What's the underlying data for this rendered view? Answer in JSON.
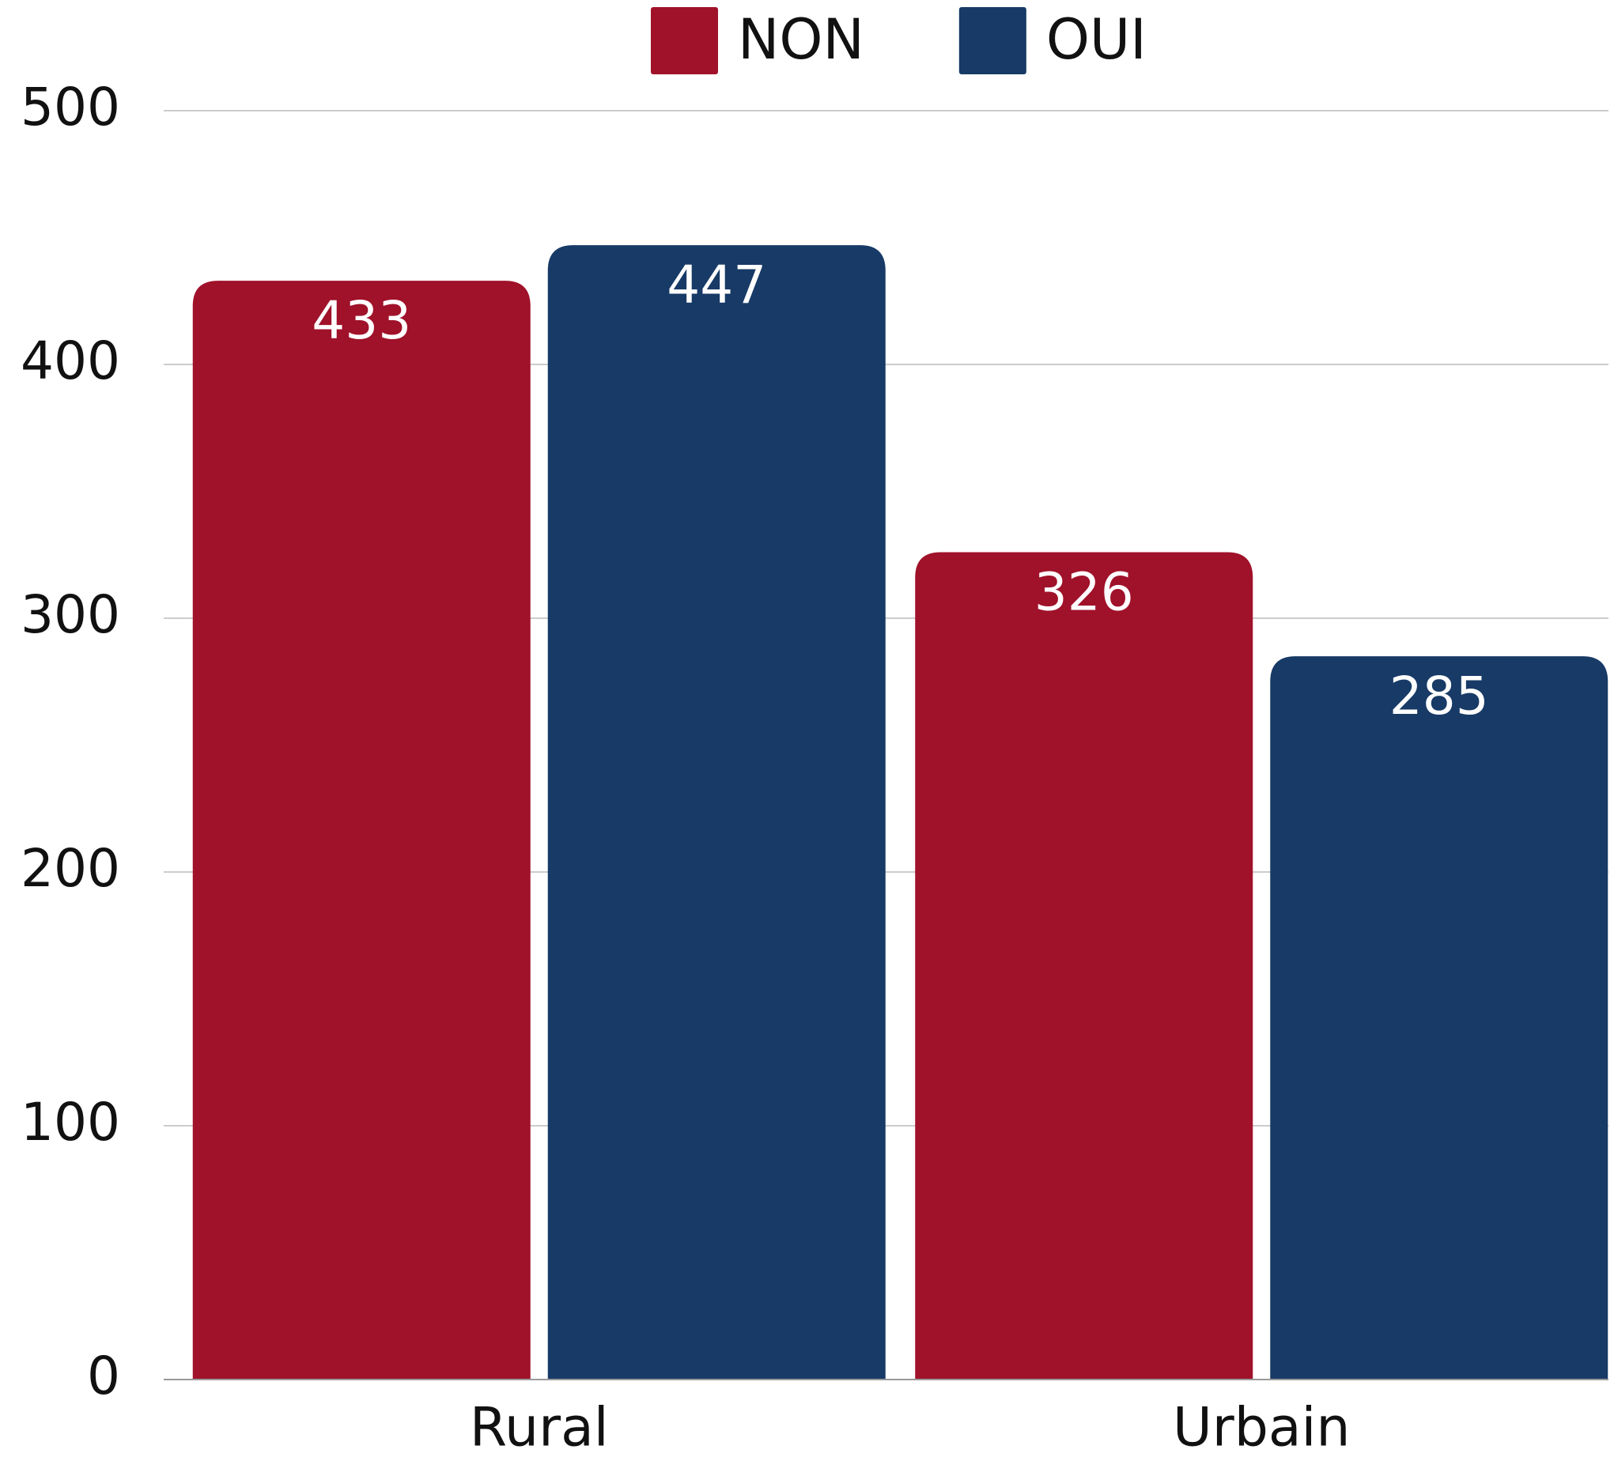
{
  "chart_data": {
    "type": "bar",
    "categories": [
      "Rural",
      "Urbain"
    ],
    "series": [
      {
        "name": "NON",
        "color": "#a0112a",
        "values": [
          433,
          326
        ]
      },
      {
        "name": "OUI",
        "color": "#173a66",
        "values": [
          447,
          285
        ]
      }
    ],
    "ylim": [
      0,
      500
    ],
    "yticks": [
      0,
      100,
      200,
      300,
      400,
      500
    ],
    "grid": true,
    "legend": "top"
  }
}
